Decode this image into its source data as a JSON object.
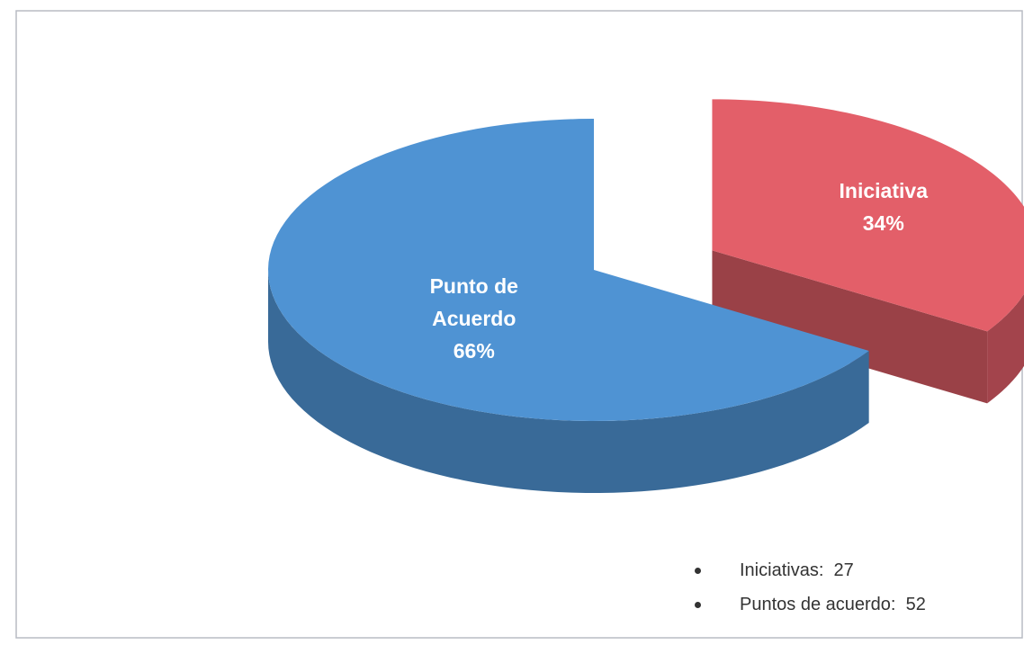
{
  "chart_data": {
    "type": "pie",
    "categories": [
      "Iniciativa",
      "Punto de Acuerdo"
    ],
    "values": [
      34,
      66
    ],
    "value_labels": [
      "34%",
      "66%"
    ],
    "colors": [
      "#e35f69",
      "#4f93d3"
    ],
    "notes": [
      {
        "label": "Iniciativas:",
        "value": 27
      },
      {
        "label": "Puntos de acuerdo:",
        "value": 52
      }
    ]
  }
}
